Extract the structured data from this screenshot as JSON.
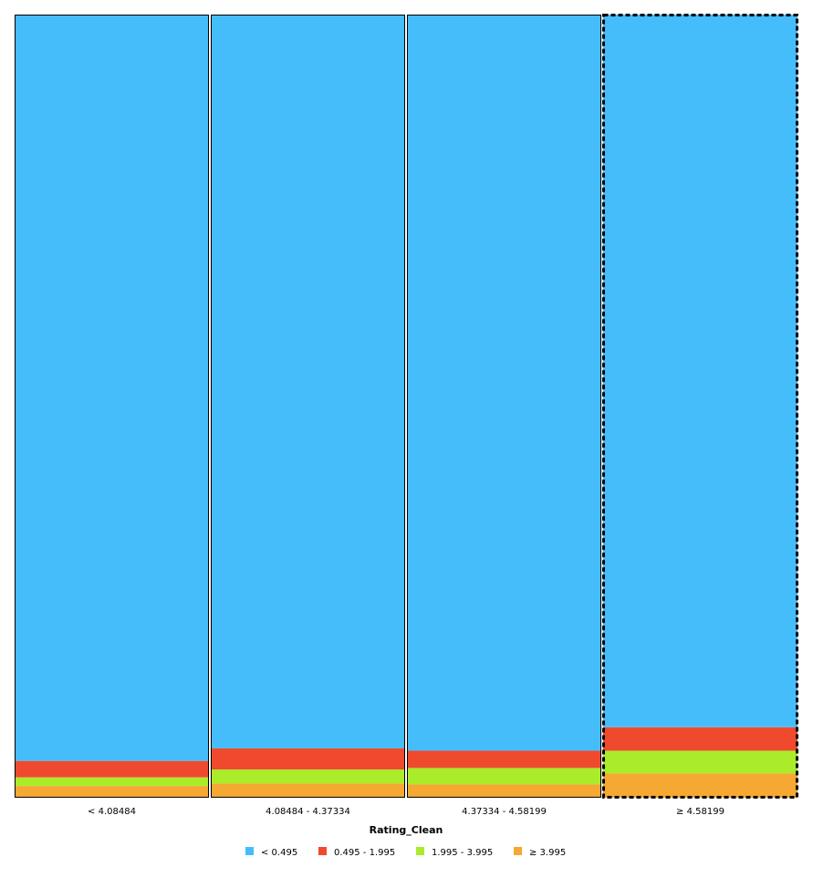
{
  "chart_data": {
    "type": "bar",
    "stacked": true,
    "normalized": true,
    "xlabel": "Rating_Clean",
    "categories": [
      "< 4.08484",
      "4.08484 - 4.37334",
      "4.37334 - 4.58199",
      "≥ 4.58199"
    ],
    "selected_category": "≥ 4.58199",
    "series": [
      {
        "name": "< 0.495",
        "color": "#46bdfb",
        "values": [
          0.953,
          0.937,
          0.94,
          0.91
        ]
      },
      {
        "name": "0.495 - 1.995",
        "color": "#ef4a2e",
        "values": [
          0.021,
          0.027,
          0.022,
          0.03
        ]
      },
      {
        "name": "1.995 - 3.995",
        "color": "#aaec2a",
        "values": [
          0.011,
          0.018,
          0.021,
          0.029
        ]
      },
      {
        "name": "≥ 3.995",
        "color": "#f5a832",
        "values": [
          0.015,
          0.018,
          0.017,
          0.031
        ]
      }
    ],
    "ylim": [
      0,
      1
    ],
    "legend_position": "bottom-center",
    "grid": false
  }
}
